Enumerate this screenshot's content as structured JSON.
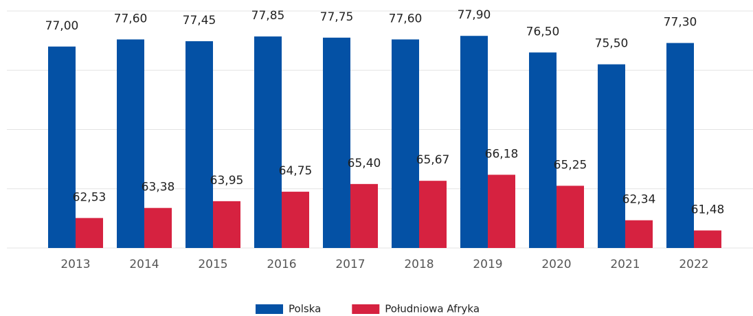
{
  "chart_data": {
    "type": "bar",
    "categories": [
      "2013",
      "2014",
      "2015",
      "2016",
      "2017",
      "2018",
      "2019",
      "2020",
      "2021",
      "2022"
    ],
    "series": [
      {
        "name": "Polska",
        "color": "#0451a5",
        "values": [
          77.0,
          77.6,
          77.45,
          77.85,
          77.75,
          77.6,
          77.9,
          76.5,
          75.5,
          77.3
        ],
        "value_labels": [
          "77,00",
          "77,60",
          "77,45",
          "77,85",
          "77,75",
          "77,60",
          "77,90",
          "76,50",
          "75,50",
          "77,30"
        ]
      },
      {
        "name": "Południowa Afryka",
        "color": "#d62240",
        "values": [
          62.53,
          63.38,
          63.95,
          64.75,
          65.4,
          65.67,
          66.18,
          65.25,
          62.34,
          61.48
        ],
        "value_labels": [
          "62,53",
          "63,38",
          "63,95",
          "64,75",
          "65,40",
          "65,67",
          "66,18",
          "65,25",
          "62,34",
          "61,48"
        ]
      }
    ],
    "ylim": [
      60,
      80
    ],
    "yticks": [
      60,
      65,
      70,
      75,
      80
    ],
    "grid": true,
    "legend": "bottom"
  }
}
